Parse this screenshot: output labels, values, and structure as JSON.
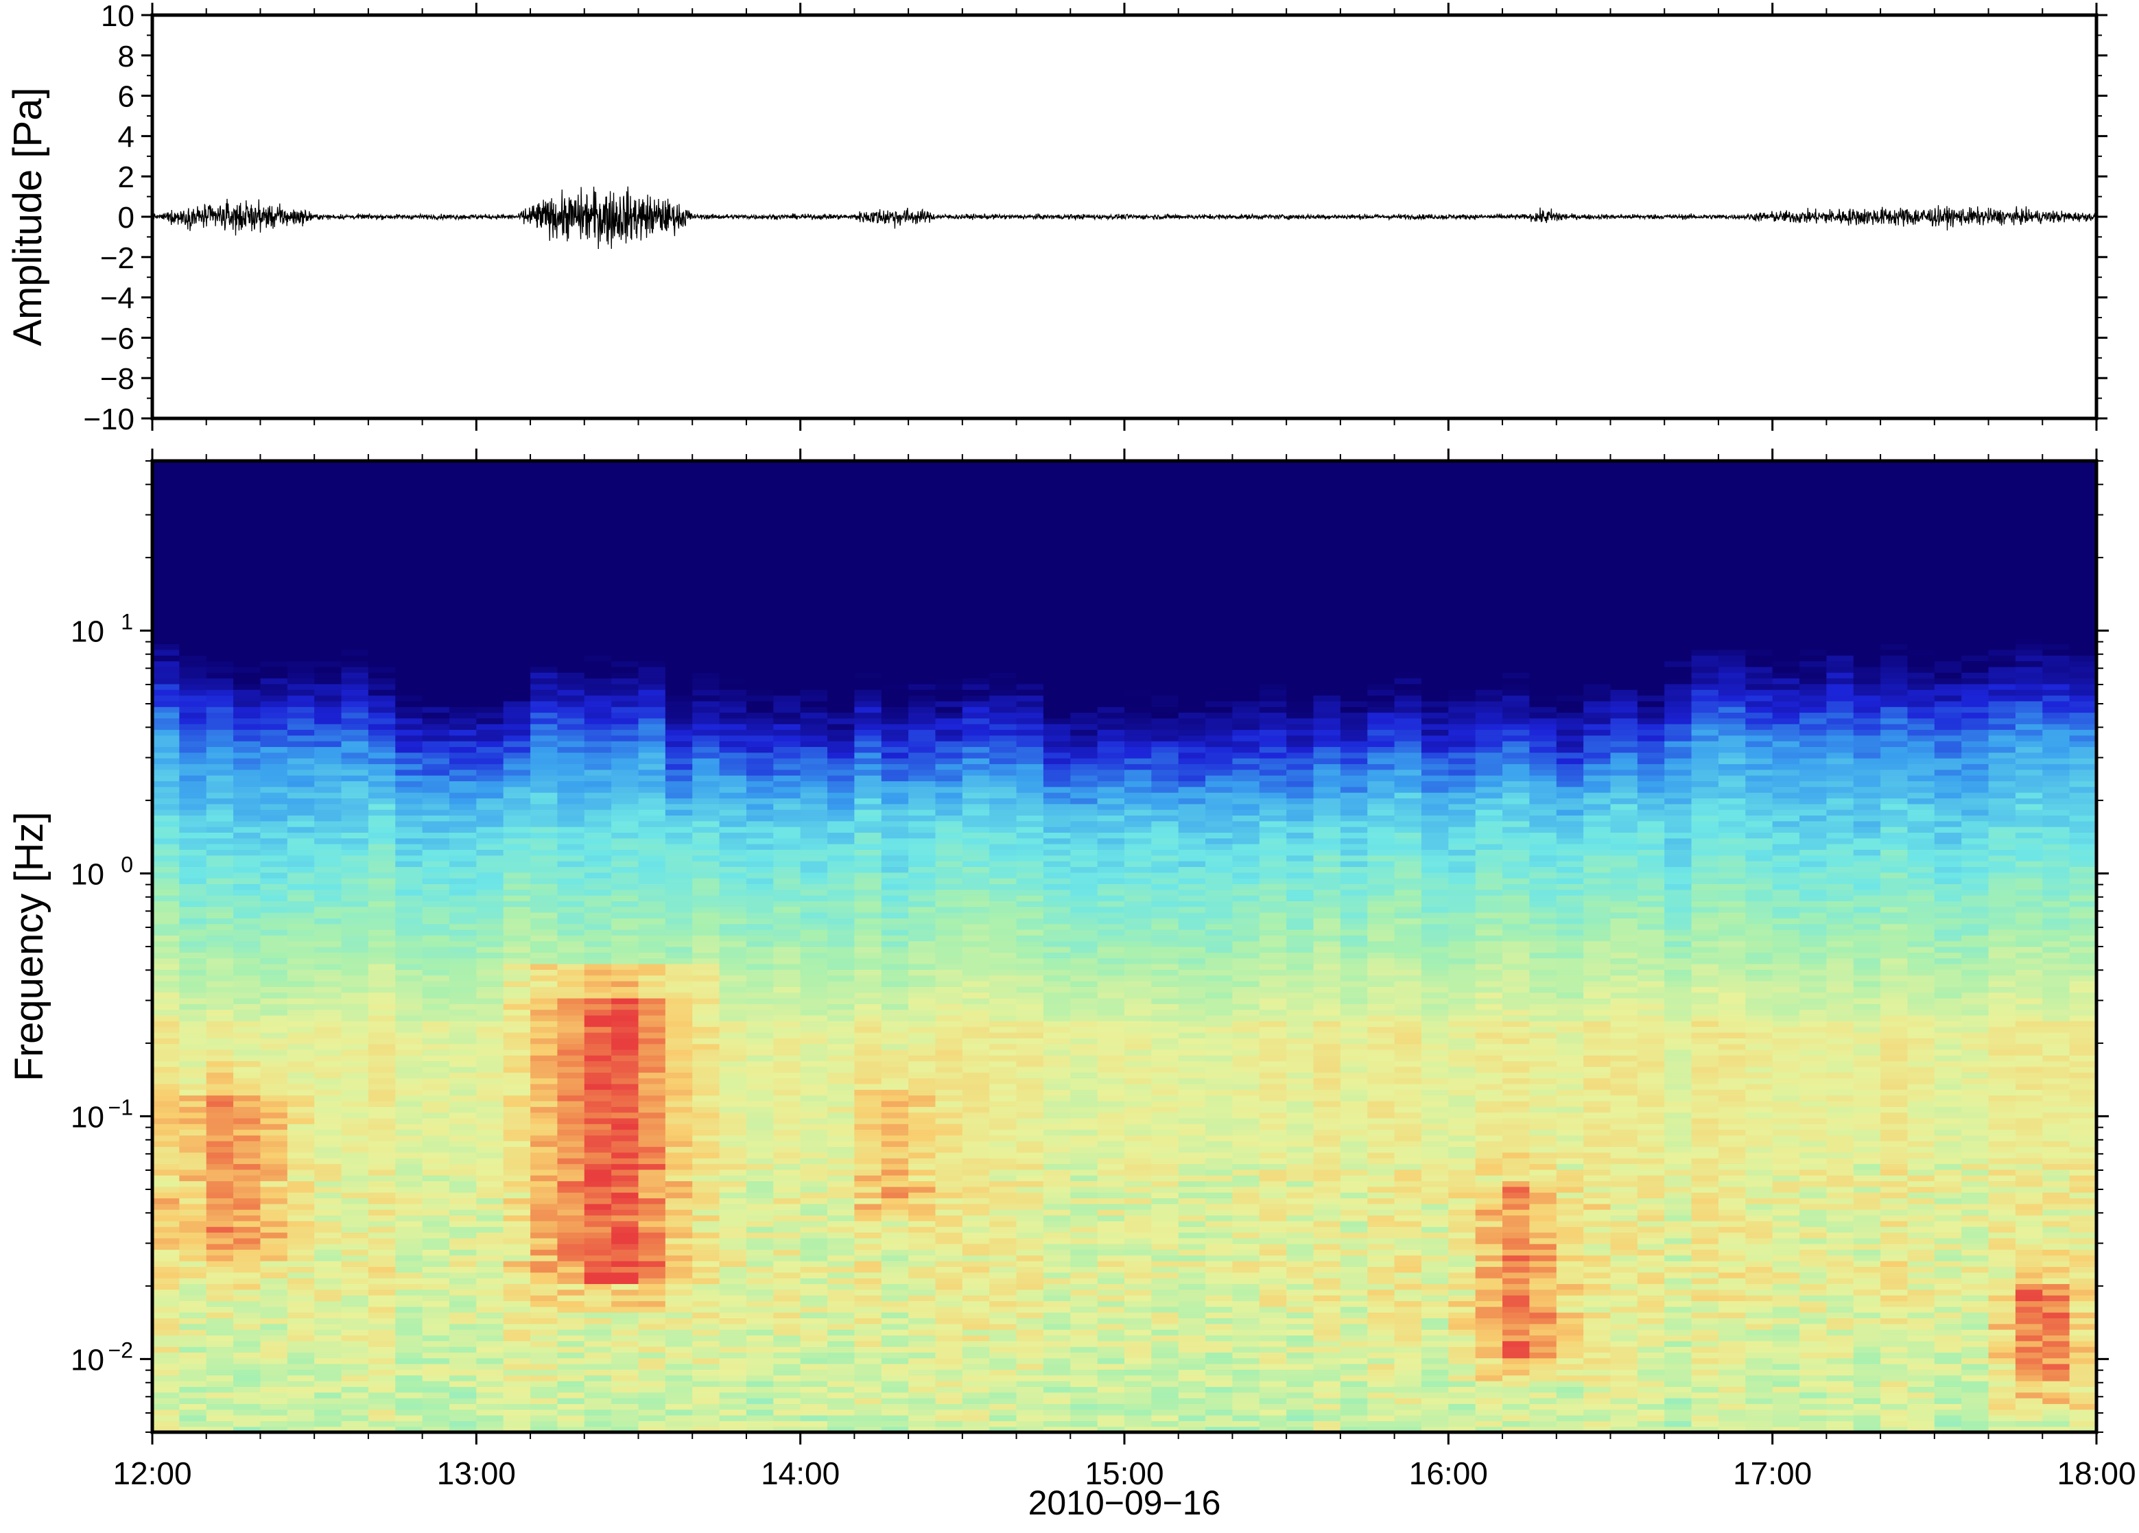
{
  "chart_data": [
    {
      "type": "line",
      "ylabel": "Amplitude [Pa]",
      "ylim": [
        -10,
        10
      ],
      "yticks": [
        "10",
        "8",
        "6",
        "4",
        "2",
        "0",
        "−2",
        "−4",
        "−6",
        "−8",
        "−10"
      ],
      "xlim": [
        "12:00",
        "18:00"
      ],
      "grid": false,
      "series": [
        {
          "description": "pressure waveform",
          "baseline": 0,
          "bursts": [
            {
              "start": "12:02",
              "end": "12:30",
              "peak": 0.7
            },
            {
              "start": "13:08",
              "end": "13:40",
              "peak": 1.5
            },
            {
              "start": "14:10",
              "end": "14:25",
              "peak": 0.4
            },
            {
              "start": "16:15",
              "end": "16:22",
              "peak": 0.3
            },
            {
              "start": "16:55",
              "end": "18:00",
              "peak": 0.4
            }
          ]
        }
      ]
    },
    {
      "type": "heatmap",
      "ylabel": "Frequency [Hz]",
      "xlabel": "2010−09−16",
      "yscale": "log",
      "ylim": [
        0.005,
        50
      ],
      "ytick_labels": [
        {
          "base": "10",
          "exp": "1",
          "value": 10
        },
        {
          "base": "10",
          "exp": "0",
          "value": 1
        },
        {
          "base": "10",
          "exp": "−1",
          "value": 0.1
        },
        {
          "base": "10",
          "exp": "−2",
          "value": 0.01
        }
      ],
      "xtick_labels": [
        "12:00",
        "13:00",
        "14:00",
        "15:00",
        "16:00",
        "17:00",
        "18:00"
      ],
      "colormap": [
        "#0a0070",
        "#1c24d8",
        "#3aa0ee",
        "#6ee6e6",
        "#a8f0b0",
        "#e8f29a",
        "#f8cf70",
        "#f08a50",
        "#e83e3e"
      ],
      "energy_events": [
        {
          "time": "12:15",
          "width_min": 25,
          "fmin": 0.025,
          "fmax": 0.12,
          "level": 0.9
        },
        {
          "time": "13:25",
          "width_min": 28,
          "fmin": 0.02,
          "fmax": 0.3,
          "level": 1.0
        },
        {
          "time": "14:18",
          "width_min": 18,
          "fmin": 0.04,
          "fmax": 0.13,
          "level": 0.8
        },
        {
          "time": "16:14",
          "width_min": 22,
          "fmin": 0.01,
          "fmax": 0.05,
          "level": 0.88
        },
        {
          "time": "17:50",
          "width_min": 14,
          "fmin": 0.008,
          "fmax": 0.02,
          "level": 0.95
        }
      ],
      "high_freq_bands": [
        {
          "start": "12:00",
          "end": "12:40",
          "top_hz": 15
        },
        {
          "start": "13:10",
          "end": "13:35",
          "top_hz": 14
        },
        {
          "start": "16:40",
          "end": "18:00",
          "top_hz": 16
        }
      ]
    }
  ]
}
